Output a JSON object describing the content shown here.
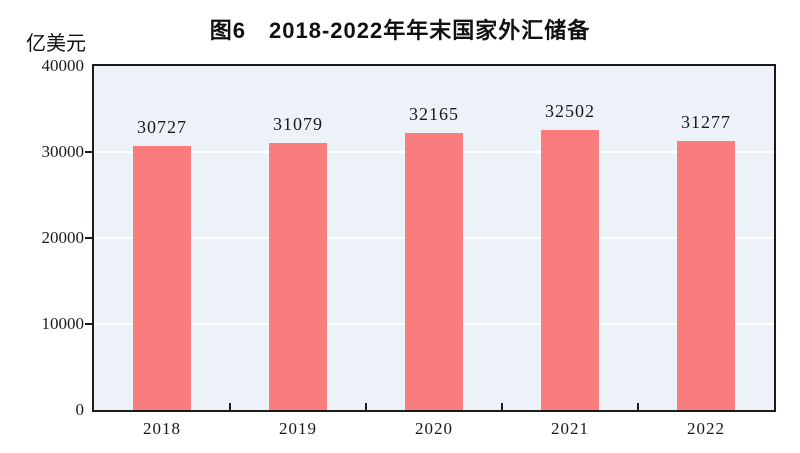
{
  "figure": {
    "title": "图6　2018-2022年年末国家外汇储备",
    "unit_label": "亿美元"
  },
  "chart_data": {
    "type": "bar",
    "title": "图6　2018-2022年年末国家外汇储备",
    "ylabel": "亿美元",
    "xlabel": "",
    "categories": [
      "2018",
      "2019",
      "2020",
      "2021",
      "2022"
    ],
    "values": [
      30727,
      31079,
      32165,
      32502,
      31277
    ],
    "ylim": [
      0,
      40000
    ],
    "yticks": [
      0,
      10000,
      20000,
      30000,
      40000
    ],
    "grid": "horizontal",
    "legend_position": "none",
    "data_labels": true,
    "colors": {
      "bar": "#FA7D7D",
      "plot_background": "#ECF2F7",
      "gridline": "#FFFFFF",
      "axis": "#1A1A1A",
      "text": "#1A1A1A"
    }
  }
}
